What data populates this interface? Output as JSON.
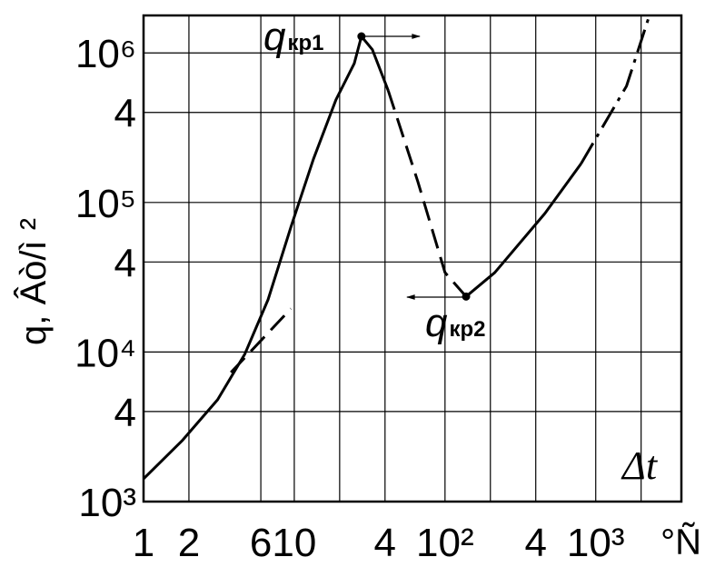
{
  "chart_data": {
    "type": "line",
    "x_label": "°Ñ",
    "y_label": "q, Âò/ì ²",
    "annotations": {
      "qkr1": "q",
      "qkr1_sub": "кр1",
      "qkr2": "q",
      "qkr2_sub": "кр2",
      "dt": "Δt"
    },
    "log_x": true,
    "log_y": true,
    "grid": true,
    "xlim": [
      1,
      3700
    ],
    "ylim": [
      1000,
      1780000
    ],
    "xticks": [
      1,
      2,
      6,
      10,
      {
        "value": 40,
        "label": "4"
      },
      {
        "value": 100,
        "label": "10²"
      },
      {
        "value": 400,
        "label": "4"
      },
      {
        "value": 1000,
        "label": "10³"
      }
    ],
    "xgrid": [
      2,
      6,
      10,
      20,
      40,
      100,
      200,
      400,
      1000,
      2000
    ],
    "yticks": [
      {
        "value": 1000,
        "label": "10³"
      },
      {
        "value": 4000,
        "label": "4"
      },
      {
        "value": 10000,
        "label": "10⁴"
      },
      {
        "value": 40000,
        "label": "4"
      },
      {
        "value": 100000,
        "label": "10⁵"
      },
      {
        "value": 400000,
        "label": "4"
      },
      {
        "value": 1000000,
        "label": "10⁶"
      }
    ],
    "series": [
      {
        "color": "#000",
        "style": "solid",
        "x": [
          1,
          1.8,
          3.1,
          4.7,
          6.7,
          9.5,
          13.4,
          18.9,
          25,
          27.9,
          33,
          42
        ],
        "values": [
          1420,
          2550,
          4800,
          9700,
          22400,
          68500,
          195000,
          486000,
          850000,
          1290000,
          1050000,
          560000
        ]
      },
      {
        "color": "#000",
        "style": "dashed",
        "x": [
          42,
          66,
          100,
          138
        ],
        "values": [
          560000,
          138000,
          34000,
          23500
        ]
      },
      {
        "color": "#000",
        "style": "solid",
        "x": [
          138,
          214,
          460,
          800
        ],
        "values": [
          23500,
          34000,
          84500,
          182000
        ]
      },
      {
        "color": "#000",
        "style": "dashdot",
        "x": [
          800,
          1600,
          2270
        ],
        "values": [
          182000,
          600000,
          1780000
        ]
      },
      {
        "color": "#000",
        "style": "dashed",
        "x": [
          3.8,
          9.5
        ],
        "values": [
          7300,
          19500
        ]
      }
    ]
  }
}
